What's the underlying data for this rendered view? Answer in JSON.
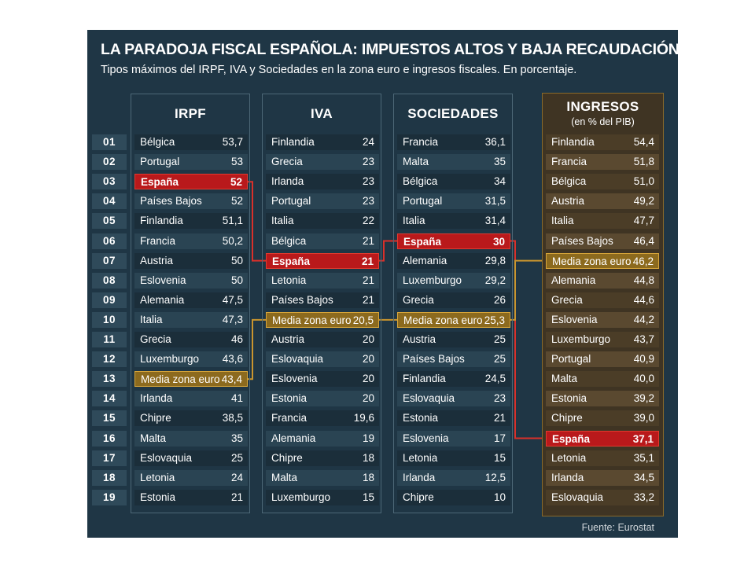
{
  "title": "LA PARADOJA FISCAL ESPAÑOLA: IMPUESTOS ALTOS Y BAJA RECAUDACIÓN",
  "subtitle": "Tipos máximos del IRPF, IVA y Sociedades en la zona euro e ingresos fiscales. En porcentaje.",
  "source": "Fuente: Eurostat",
  "colors": {
    "background": "#1f3645",
    "spain": "#b9191b",
    "average": "#8c6a1e",
    "ingresos_panel": "#3f3423"
  },
  "row_numbers": [
    "01",
    "02",
    "03",
    "04",
    "05",
    "06",
    "07",
    "08",
    "09",
    "10",
    "11",
    "12",
    "13",
    "14",
    "15",
    "16",
    "17",
    "18",
    "19"
  ],
  "chart_data": {
    "type": "table",
    "title": "LA PARADOJA FISCAL ESPAÑOLA: IMPUESTOS ALTOS Y BAJA RECAUDACIÓN",
    "subtitle": "Tipos máximos del IRPF, IVA y Sociedades en la zona euro e ingresos fiscales. En porcentaje.",
    "columns": [
      {
        "key": "irpf",
        "header": "IRPF",
        "subheader": "",
        "rows": [
          {
            "country": "Bélgica",
            "value": "53,7"
          },
          {
            "country": "Portugal",
            "value": "53"
          },
          {
            "country": "España",
            "value": "52",
            "highlight": "spain"
          },
          {
            "country": "Países Bajos",
            "value": "52"
          },
          {
            "country": "Finlandia",
            "value": "51,1"
          },
          {
            "country": "Francia",
            "value": "50,2"
          },
          {
            "country": "Austria",
            "value": "50"
          },
          {
            "country": "Eslovenia",
            "value": "50"
          },
          {
            "country": "Alemania",
            "value": "47,5"
          },
          {
            "country": "Italia",
            "value": "47,3"
          },
          {
            "country": "Grecia",
            "value": "46"
          },
          {
            "country": "Luxemburgo",
            "value": "43,6"
          },
          {
            "country": "Media zona euro",
            "value": "43,4",
            "highlight": "average"
          },
          {
            "country": "Irlanda",
            "value": "41"
          },
          {
            "country": "Chipre",
            "value": "38,5"
          },
          {
            "country": "Malta",
            "value": "35"
          },
          {
            "country": "Eslovaquia",
            "value": "25"
          },
          {
            "country": "Letonia",
            "value": "24"
          },
          {
            "country": "Estonia",
            "value": "21"
          }
        ]
      },
      {
        "key": "iva",
        "header": "IVA",
        "subheader": "",
        "rows": [
          {
            "country": "Finlandia",
            "value": "24"
          },
          {
            "country": "Grecia",
            "value": "23"
          },
          {
            "country": "Irlanda",
            "value": "23"
          },
          {
            "country": "Portugal",
            "value": "23"
          },
          {
            "country": "Italia",
            "value": "22"
          },
          {
            "country": "Bélgica",
            "value": "21"
          },
          {
            "country": "España",
            "value": "21",
            "highlight": "spain"
          },
          {
            "country": "Letonia",
            "value": "21"
          },
          {
            "country": "Países Bajos",
            "value": "21"
          },
          {
            "country": "Media zona euro",
            "value": "20,5",
            "highlight": "average"
          },
          {
            "country": "Austria",
            "value": "20"
          },
          {
            "country": "Eslovaquia",
            "value": "20"
          },
          {
            "country": "Eslovenia",
            "value": "20"
          },
          {
            "country": "Estonia",
            "value": "20"
          },
          {
            "country": "Francia",
            "value": "19,6"
          },
          {
            "country": "Alemania",
            "value": "19"
          },
          {
            "country": "Chipre",
            "value": "18"
          },
          {
            "country": "Malta",
            "value": "18"
          },
          {
            "country": "Luxemburgo",
            "value": "15"
          }
        ]
      },
      {
        "key": "sociedades",
        "header": "SOCIEDADES",
        "subheader": "",
        "rows": [
          {
            "country": "Francia",
            "value": "36,1"
          },
          {
            "country": "Malta",
            "value": "35"
          },
          {
            "country": "Bélgica",
            "value": "34"
          },
          {
            "country": "Portugal",
            "value": "31,5"
          },
          {
            "country": "Italia",
            "value": "31,4"
          },
          {
            "country": "España",
            "value": "30",
            "highlight": "spain"
          },
          {
            "country": "Alemania",
            "value": "29,8"
          },
          {
            "country": "Luxemburgo",
            "value": "29,2"
          },
          {
            "country": "Grecia",
            "value": "26"
          },
          {
            "country": "Media zona euro",
            "value": "25,3",
            "highlight": "average"
          },
          {
            "country": "Austria",
            "value": "25"
          },
          {
            "country": "Países Bajos",
            "value": "25"
          },
          {
            "country": "Finlandia",
            "value": "24,5"
          },
          {
            "country": "Eslovaquia",
            "value": "23"
          },
          {
            "country": "Estonia",
            "value": "21"
          },
          {
            "country": "Eslovenia",
            "value": "17"
          },
          {
            "country": "Letonia",
            "value": "15"
          },
          {
            "country": "Irlanda",
            "value": "12,5"
          },
          {
            "country": "Chipre",
            "value": "10"
          }
        ]
      },
      {
        "key": "ingresos",
        "header": "INGRESOS",
        "subheader": "(en % del PIB)",
        "rows": [
          {
            "country": "Finlandia",
            "value": "54,4"
          },
          {
            "country": "Francia",
            "value": "51,8"
          },
          {
            "country": "Bélgica",
            "value": "51,0"
          },
          {
            "country": "Austria",
            "value": "49,2"
          },
          {
            "country": "Italia",
            "value": "47,7"
          },
          {
            "country": "Países Bajos",
            "value": "46,4"
          },
          {
            "country": "Media zona euro",
            "value": "46,2",
            "highlight": "average"
          },
          {
            "country": "Alemania",
            "value": "44,8"
          },
          {
            "country": "Grecia",
            "value": "44,6"
          },
          {
            "country": "Eslovenia",
            "value": "44,2"
          },
          {
            "country": "Luxemburgo",
            "value": "43,7"
          },
          {
            "country": "Portugal",
            "value": "40,9"
          },
          {
            "country": "Malta",
            "value": "40,0"
          },
          {
            "country": "Estonia",
            "value": "39,2"
          },
          {
            "country": "Chipre",
            "value": "39,0"
          },
          {
            "country": "España",
            "value": "37,1",
            "highlight": "spain"
          },
          {
            "country": "Letonia",
            "value": "35,1"
          },
          {
            "country": "Irlanda",
            "value": "34,5"
          },
          {
            "country": "Eslovaquia",
            "value": "33,2"
          }
        ]
      }
    ]
  }
}
